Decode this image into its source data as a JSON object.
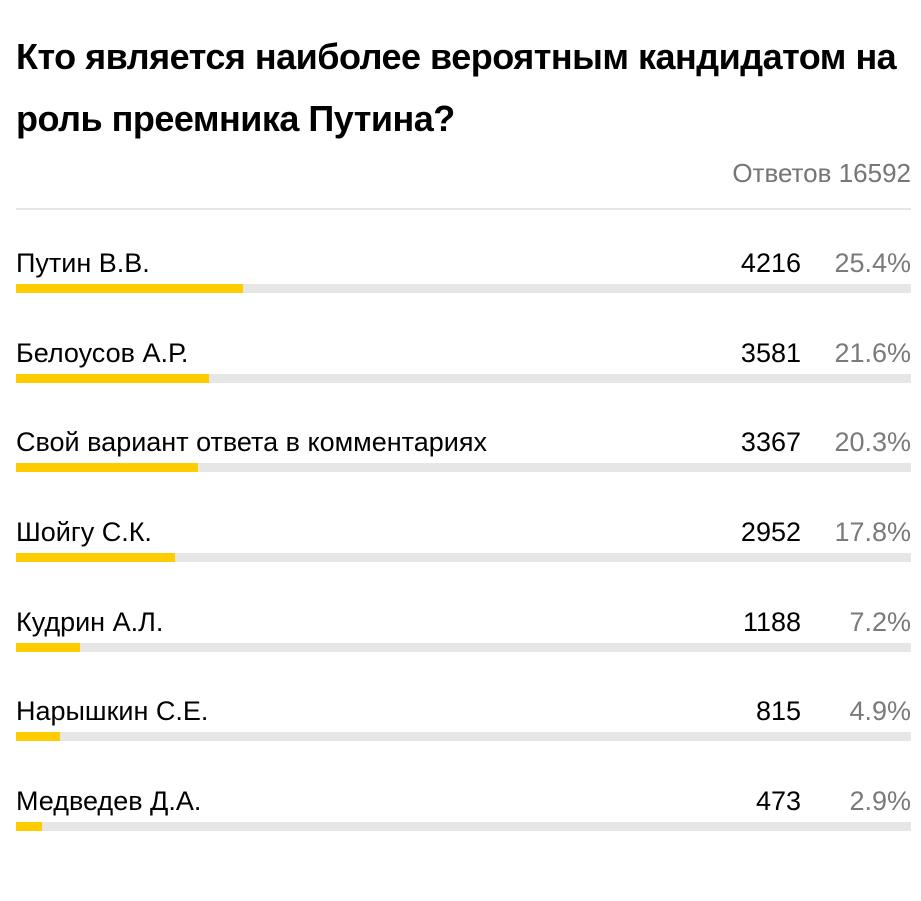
{
  "poll": {
    "title": "Кто является наиболее вероятным кандидатом на роль преемника Путина?",
    "total_label": "Ответов",
    "total_value": "16592",
    "bar_color": "#ffcc00",
    "track_color": "#e6e6e6",
    "options": [
      {
        "label": "Путин В.В.",
        "count": "4216",
        "percent": "25.4%",
        "fraction": 0.254
      },
      {
        "label": "Белоусов А.Р.",
        "count": "3581",
        "percent": "21.6%",
        "fraction": 0.216
      },
      {
        "label": "Свой вариант ответа в комментариях",
        "count": "3367",
        "percent": "20.3%",
        "fraction": 0.203
      },
      {
        "label": "Шойгу С.К.",
        "count": "2952",
        "percent": "17.8%",
        "fraction": 0.178
      },
      {
        "label": "Кудрин А.Л.",
        "count": "1188",
        "percent": "7.2%",
        "fraction": 0.072
      },
      {
        "label": "Нарышкин С.Е.",
        "count": "815",
        "percent": "4.9%",
        "fraction": 0.049
      },
      {
        "label": "Медведев Д.А.",
        "count": "473",
        "percent": "2.9%",
        "fraction": 0.029
      }
    ]
  }
}
